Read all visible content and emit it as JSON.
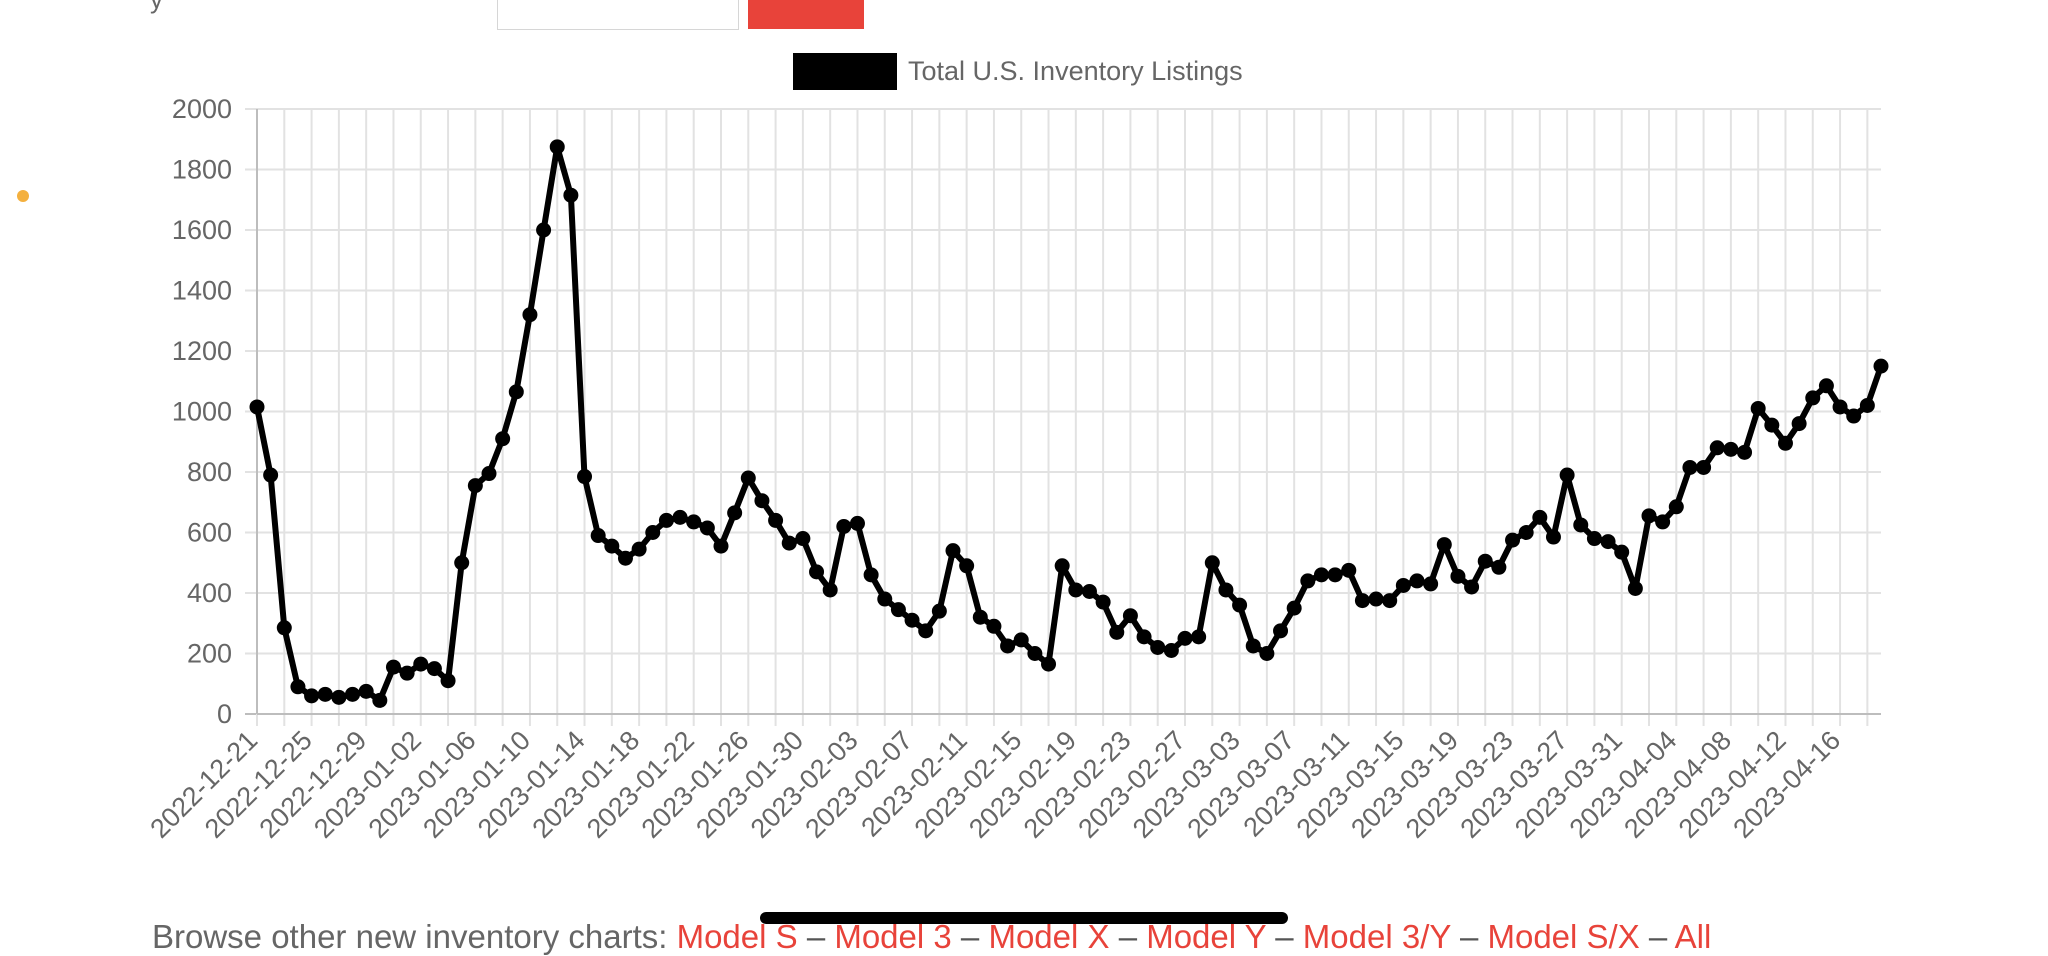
{
  "top": {
    "partial_label": "y"
  },
  "browse": {
    "prefix": "Browse other new inventory charts:",
    "links": [
      "Model S",
      "Model 3",
      "Model X",
      "Model Y",
      "Model 3/Y",
      "Model S/X",
      "All"
    ],
    "separator": "–"
  },
  "colors": {
    "accent": "#e8433a",
    "series": "#000000",
    "grid": "#e0e0e0",
    "indicator": "#f4b03e"
  },
  "chart_data": {
    "type": "line",
    "legend": {
      "label": "Total U.S. Inventory Listings",
      "position": "top-center"
    },
    "ylim": [
      0,
      2000
    ],
    "yticks": [
      0,
      200,
      400,
      600,
      800,
      1000,
      1200,
      1400,
      1600,
      1800,
      2000
    ],
    "grid": true,
    "x_start": "2022-12-21",
    "x_labels": [
      "2022-12-21",
      "2022-12-25",
      "2022-12-29",
      "2023-01-02",
      "2023-01-06",
      "2023-01-10",
      "2023-01-14",
      "2023-01-18",
      "2023-01-22",
      "2023-01-26",
      "2023-01-30",
      "2023-02-03",
      "2023-02-07",
      "2023-02-11",
      "2023-02-15",
      "2023-02-19",
      "2023-02-23",
      "2023-02-27",
      "2023-03-03",
      "2023-03-07",
      "2023-03-11",
      "2023-03-15",
      "2023-03-19",
      "2023-03-23",
      "2023-03-27",
      "2023-03-31",
      "2023-04-04",
      "2023-04-08",
      "2023-04-12",
      "2023-04-16"
    ],
    "series": [
      {
        "name": "Total U.S. Inventory Listings",
        "values": [
          1015,
          790,
          285,
          90,
          60,
          65,
          55,
          65,
          75,
          45,
          155,
          135,
          165,
          150,
          110,
          500,
          755,
          795,
          910,
          1065,
          1320,
          1600,
          1875,
          1715,
          785,
          590,
          555,
          515,
          545,
          600,
          640,
          650,
          635,
          615,
          555,
          665,
          780,
          705,
          640,
          565,
          580,
          470,
          410,
          620,
          630,
          460,
          380,
          345,
          310,
          275,
          340,
          540,
          490,
          320,
          290,
          225,
          245,
          200,
          165,
          490,
          410,
          405,
          370,
          270,
          325,
          255,
          220,
          210,
          250,
          255,
          500,
          410,
          360,
          225,
          200,
          275,
          350,
          440,
          460,
          460,
          475,
          375,
          380,
          375,
          425,
          440,
          430,
          560,
          455,
          420,
          505,
          485,
          575,
          600,
          650,
          585,
          790,
          625,
          580,
          570,
          535,
          415,
          655,
          635,
          685,
          815,
          815,
          880,
          875,
          865,
          1010,
          955,
          895,
          960,
          1045,
          1085,
          1015,
          985,
          1020,
          1150
        ]
      }
    ]
  }
}
